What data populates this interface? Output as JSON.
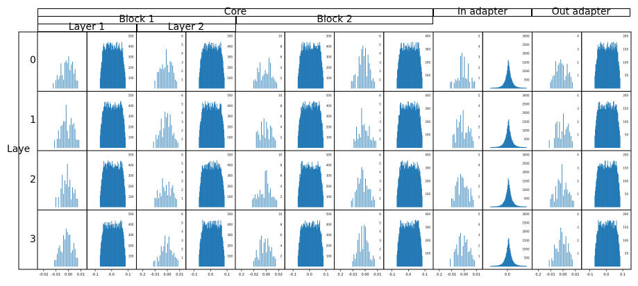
{
  "figure": {
    "headers": {
      "core": "Core",
      "block1": "Block 1",
      "block2": "Block 2",
      "layer1": "Layer 1",
      "layer2": "Layer 2",
      "in_adapter": "In adapter",
      "out_adapter": "Out adapter",
      "side": "Laye"
    },
    "row_labels": [
      "0",
      "1",
      "2",
      "3"
    ]
  },
  "colors": {
    "bar": "#1f77b4",
    "axis": "#000000"
  },
  "chart_data": {
    "type": "bar",
    "description_kind": "grid of histograms",
    "rows": [
      "0",
      "1",
      "2",
      "3"
    ],
    "columns": [
      {
        "kind": "sparse",
        "x_ticks": [
          "-0.02",
          "-0.01",
          "0.00",
          "0.01"
        ],
        "y_ticks": []
      },
      {
        "kind": "dense",
        "x_ticks": [
          "-0.1",
          "0.0",
          "0.1"
        ],
        "y_ticks": [
          "100",
          "200",
          "300",
          "400",
          "500"
        ]
      },
      {
        "kind": "sparse",
        "x_ticks": [
          "0.2",
          "-0.01",
          "0.00",
          "0.01"
        ],
        "y_ticks": [
          "1",
          "2",
          "3",
          "4",
          "5",
          "6"
        ]
      },
      {
        "kind": "dense",
        "x_ticks": [
          "-0.1",
          "0.0",
          "0.1"
        ],
        "y_ticks": [
          "100",
          "200",
          "300",
          "400",
          "500"
        ]
      },
      {
        "kind": "sparse",
        "x_ticks": [
          "0.2",
          "-0.02",
          "0.00",
          "0.02"
        ],
        "y_ticks": [
          "2",
          "4",
          "6",
          "8",
          "10"
        ]
      },
      {
        "kind": "dense",
        "x_ticks": [
          "-0.1",
          "0.0",
          "0.1"
        ],
        "y_ticks": [
          "100",
          "200",
          "300",
          "400",
          "500"
        ]
      },
      {
        "kind": "sparse",
        "x_ticks": [
          "0.2",
          "-0.01",
          "0.00",
          "0.01"
        ],
        "y_ticks": [
          "1",
          "2",
          "3",
          "4",
          "5",
          "6"
        ]
      },
      {
        "kind": "dense",
        "x_ticks": [
          "-0.1",
          "0.0",
          "0.1"
        ],
        "y_ticks": [
          "100",
          "200",
          "300",
          "400"
        ]
      },
      {
        "kind": "sparse",
        "x_ticks": [
          "0.2",
          "-0.01",
          "0.00",
          "0.01"
        ],
        "y_ticks": [
          "1",
          "2",
          "3",
          "4",
          "5"
        ]
      },
      {
        "kind": "peak",
        "x_ticks": [
          "0.0"
        ],
        "y_ticks": [
          "500",
          "1000",
          "1500",
          "2000",
          "2500",
          "3000"
        ]
      },
      {
        "kind": "sparse",
        "x_ticks": [
          "0.2",
          "-0.01",
          "0.00",
          "0.01"
        ],
        "y_ticks": [
          "1",
          "2",
          "3",
          "4"
        ]
      },
      {
        "kind": "dense",
        "x_ticks": [
          "-0.1",
          "0.0",
          "0.1"
        ],
        "y_ticks": [
          "50",
          "100",
          "150",
          "200"
        ]
      }
    ]
  }
}
